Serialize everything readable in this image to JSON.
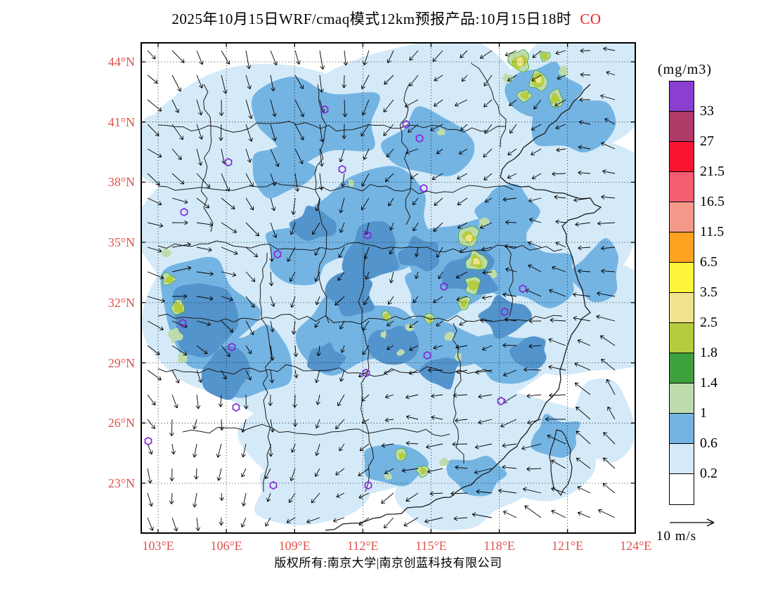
{
  "title": {
    "main": "2025年10月15日WRF/cmaq模式12km预报产品:10月15日18时",
    "species": "CO"
  },
  "map": {
    "lat_labels": [
      "44°N",
      "41°N",
      "38°N",
      "35°N",
      "32°N",
      "29°N",
      "26°N",
      "23°N"
    ],
    "lon_labels": [
      "103°E",
      "106°E",
      "109°E",
      "112°E",
      "115°E",
      "118°E",
      "121°E",
      "124°E"
    ]
  },
  "colorbar": {
    "unit": "(mg/m3)",
    "tick_labels": [
      "33",
      "27",
      "21.5",
      "16.5",
      "11.5",
      "6.5",
      "3.5",
      "2.5",
      "1.8",
      "1.4",
      "1",
      "0.6",
      "0.2"
    ],
    "colors_top_to_bottom": [
      "#8a3fd1",
      "#b03a68",
      "#fa1432",
      "#f55c72",
      "#f49889",
      "#ffa21f",
      "#fdf43b",
      "#efe48d",
      "#b5cc3f",
      "#3da23d",
      "#bedcab",
      "#74b4e3",
      "#d4eaf8",
      "#ffffff"
    ]
  },
  "wind_legend": {
    "label": "10 m/s"
  },
  "footer": {
    "copyright": "版权所有:南京大学|南京创蓝科技有限公司"
  },
  "chart_data": {
    "type": "heatmap",
    "title": "2025年10月15日WRF/cmaq模式12km预报产品:10月15日18时 CO",
    "variable": "CO",
    "unit": "mg/m3",
    "x": {
      "label": "longitude",
      "unit": "°E",
      "ticks": [
        103,
        106,
        109,
        112,
        115,
        118,
        121,
        124
      ],
      "range": [
        102.2,
        124
      ]
    },
    "y": {
      "label": "latitude",
      "unit": "°N",
      "ticks": [
        44,
        41,
        38,
        35,
        32,
        29,
        26,
        23
      ],
      "range": [
        20.5,
        45
      ]
    },
    "levels": [
      0.2,
      0.6,
      1,
      1.4,
      1.8,
      2.5,
      3.5,
      6.5,
      11.5,
      16.5,
      21.5,
      27,
      33
    ],
    "level_colors_low_to_high": [
      "#ffffff",
      "#d4eaf8",
      "#74b4e3",
      "#bedcab",
      "#3da23d",
      "#b5cc3f",
      "#efe48d",
      "#fdf43b",
      "#ffa21f",
      "#f49889",
      "#f55c72",
      "#fa1432",
      "#b03a68",
      "#8a3fd1"
    ],
    "overlays": [
      "wind vectors (reference 10 m/s)",
      "province boundaries and coastline",
      "purple city markers",
      "dotted 3-degree graticule"
    ],
    "hotspots": [
      {
        "area": "northeast near 119-121E 42-44N",
        "value_range": "1.4-3.5"
      },
      {
        "area": "Yangtze delta 116-117E 33-35N",
        "value_range": "1.4-3.5"
      },
      {
        "area": "western edge 103E 29-32N",
        "value_range": "1.4-2.5"
      },
      {
        "area": "central 113-116E 30-31.5N",
        "value_range": "1.4-2.5"
      },
      {
        "area": "southern coast 113-115E 23-24N",
        "value_range": "1.4-2.5"
      }
    ],
    "background_field": "CO mostly 0.2-1 mg/m3 (white to light/medium blue) over eastern China"
  }
}
